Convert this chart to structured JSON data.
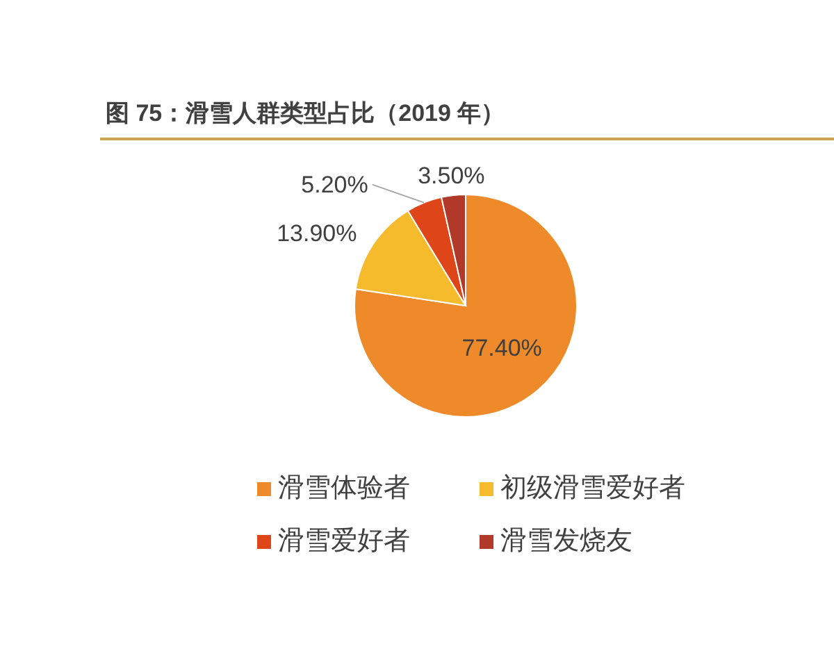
{
  "chart_data": {
    "type": "pie",
    "title": "图 75：滑雪人群类型占比（2019 年）",
    "categories": [
      "滑雪体验者",
      "初级滑雪爱好者",
      "滑雪爱好者",
      "滑雪发烧友"
    ],
    "values": [
      77.4,
      13.9,
      5.2,
      3.5
    ],
    "colors": [
      "#ef8a2a",
      "#f6bb2c",
      "#de4519",
      "#b0392a"
    ],
    "value_labels": [
      "77.40%",
      "13.90%",
      "5.20%",
      "3.50%"
    ],
    "legend": "bottom"
  }
}
